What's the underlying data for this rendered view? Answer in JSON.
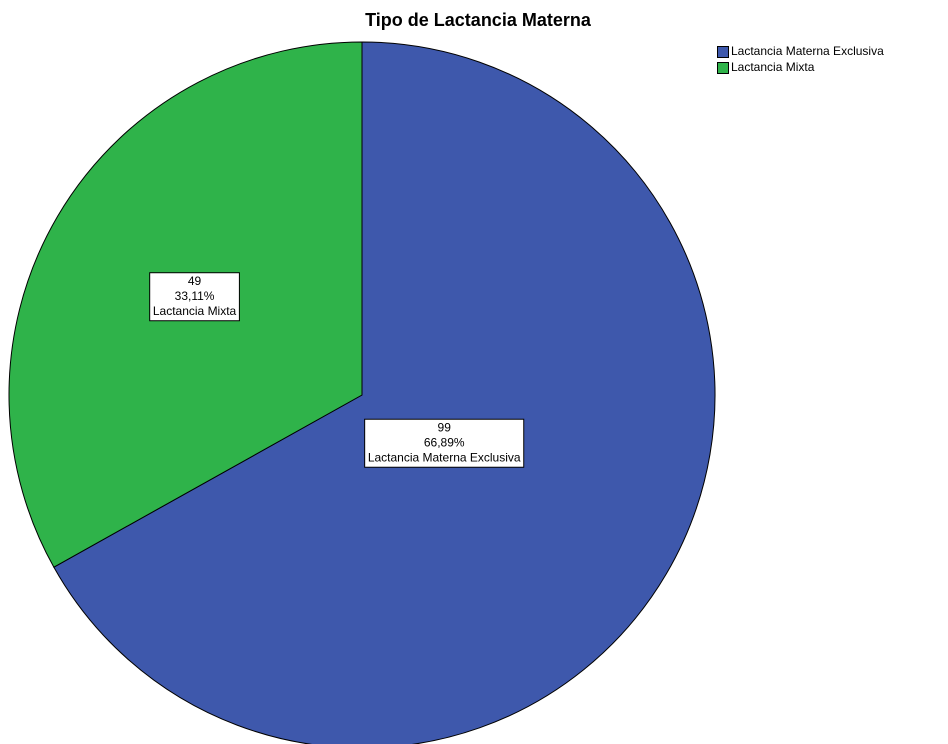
{
  "chart_data": {
    "type": "pie",
    "title": "Tipo de Lactancia Materna",
    "categories": [
      "Lactancia Materna Exclusiva",
      "Lactancia Mixta"
    ],
    "values": [
      99,
      49
    ],
    "percentages": [
      66.89,
      33.11
    ],
    "percentage_labels": [
      "66,89%",
      "33,11%"
    ],
    "colors": [
      "#3e58ac",
      "#2fb34a"
    ],
    "legend": "top-right"
  }
}
